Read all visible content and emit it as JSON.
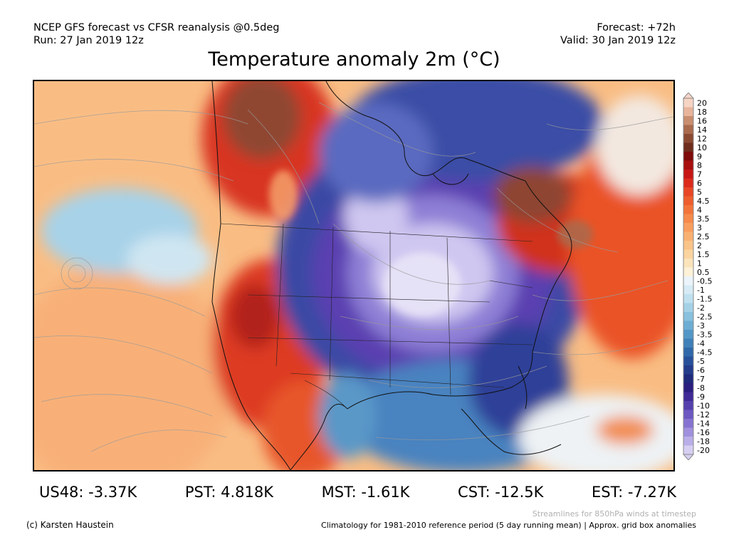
{
  "header": {
    "left_line1": "NCEP GFS forecast vs CFSR reanalysis @0.5deg",
    "left_line2": "Run: 27 Jan 2019 12z",
    "right_line1": "Forecast: +72h",
    "right_line2": "Valid: 30 Jan 2019 12z"
  },
  "title": "Temperature anomaly 2m (°C)",
  "colorbar": {
    "labels": [
      "20",
      "18",
      "16",
      "14",
      "12",
      "10",
      "9",
      "8",
      "7",
      "6",
      "5",
      "4.5",
      "4",
      "3.5",
      "3",
      "2.5",
      "2",
      "1.5",
      "1",
      "0.5",
      "-0.5",
      "-1",
      "-1.5",
      "-2",
      "-2.5",
      "-3",
      "-3.5",
      "-4",
      "-4.5",
      "-5",
      "-6",
      "-7",
      "-8",
      "-9",
      "-10",
      "-12",
      "-14",
      "-16",
      "-18",
      "-20"
    ],
    "colors": [
      "#f6d4c4",
      "#e8b49c",
      "#c98d6f",
      "#a96a4e",
      "#8a4a32",
      "#6e2d1d",
      "#7f0b0b",
      "#a80f0f",
      "#c71616",
      "#dc2a1d",
      "#e84626",
      "#ee5d2d",
      "#f3743a",
      "#f68a4b",
      "#f89e5e",
      "#f9b172",
      "#fac389",
      "#fbd4a0",
      "#fbe4bb",
      "#fdf1d8",
      "#eaf4fa",
      "#d6ebf5",
      "#bfe0ef",
      "#a5d1e7",
      "#89c0de",
      "#6dadd3",
      "#5397c7",
      "#3f80b8",
      "#3168a9",
      "#28519a",
      "#233c8c",
      "#1f2a7c",
      "#2a1e80",
      "#3f2a96",
      "#5540ad",
      "#6d58c2",
      "#8673d1",
      "#a090dd",
      "#baaee8",
      "#d6cff2"
    ]
  },
  "stats": [
    {
      "label": "US48: -3.37K"
    },
    {
      "label": "PST: 4.818K"
    },
    {
      "label": "MST: -1.61K"
    },
    {
      "label": "CST: -12.5K"
    },
    {
      "label": "EST: -7.27K"
    }
  ],
  "footer": {
    "credit": "(c) Karsten Haustein",
    "streamlines_note": "Streamlines for 850hPa winds at timestep",
    "climatology_note": "Climatology for 1981-2010 reference period (5 day running mean) | Approx. grid box anomalies"
  }
}
